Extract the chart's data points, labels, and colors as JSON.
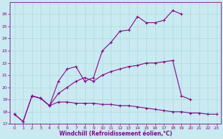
{
  "background_color": "#c8eaf0",
  "grid_color": "#b0d8e0",
  "line_color": "#880088",
  "marker": "+",
  "xlim": [
    -0.5,
    23.5
  ],
  "ylim": [
    17,
    27
  ],
  "xlabel": "Windchill (Refroidissement éolien,°C)",
  "xticks": [
    0,
    1,
    2,
    3,
    4,
    5,
    6,
    7,
    8,
    9,
    10,
    11,
    12,
    13,
    14,
    15,
    16,
    17,
    18,
    19,
    20,
    21,
    22,
    23
  ],
  "yticks": [
    17,
    18,
    19,
    20,
    21,
    22,
    23,
    24,
    25,
    26
  ],
  "series": [
    {
      "x": [
        0,
        1,
        2,
        3,
        4,
        5,
        6,
        7,
        8,
        9,
        10,
        11,
        12,
        13,
        14,
        15,
        16,
        17,
        18,
        19,
        20,
        21,
        22,
        23
      ],
      "y": [
        17.8,
        17.2,
        19.3,
        19.1,
        18.5,
        18.8,
        18.8,
        18.7,
        18.7,
        18.7,
        18.6,
        18.6,
        18.5,
        18.5,
        18.4,
        18.3,
        18.2,
        18.1,
        18.0,
        18.0,
        17.9,
        17.9,
        17.8,
        17.8
      ]
    },
    {
      "x": [
        0,
        1,
        2,
        3,
        4,
        5,
        6,
        7,
        8,
        9,
        10,
        11,
        12,
        13,
        14,
        15,
        16,
        17,
        18,
        19,
        20,
        21,
        22,
        23
      ],
      "y": [
        17.8,
        17.2,
        19.3,
        19.1,
        18.5,
        19.5,
        20.0,
        20.5,
        20.8,
        20.5,
        21.0,
        21.3,
        21.5,
        21.7,
        21.8,
        22.0,
        22.0,
        22.1,
        22.2,
        19.3,
        19.0,
        null,
        null,
        null
      ]
    },
    {
      "x": [
        2,
        3,
        4,
        5,
        6,
        7,
        8,
        9,
        10,
        11,
        12,
        13,
        14,
        15,
        16,
        17,
        18,
        19,
        20,
        21,
        22,
        23
      ],
      "y": [
        19.3,
        19.1,
        18.5,
        20.5,
        21.5,
        21.7,
        20.5,
        20.8,
        23.0,
        23.7,
        24.6,
        24.7,
        25.8,
        25.3,
        25.3,
        25.5,
        26.3,
        26.0,
        null,
        null,
        null,
        null
      ]
    }
  ]
}
